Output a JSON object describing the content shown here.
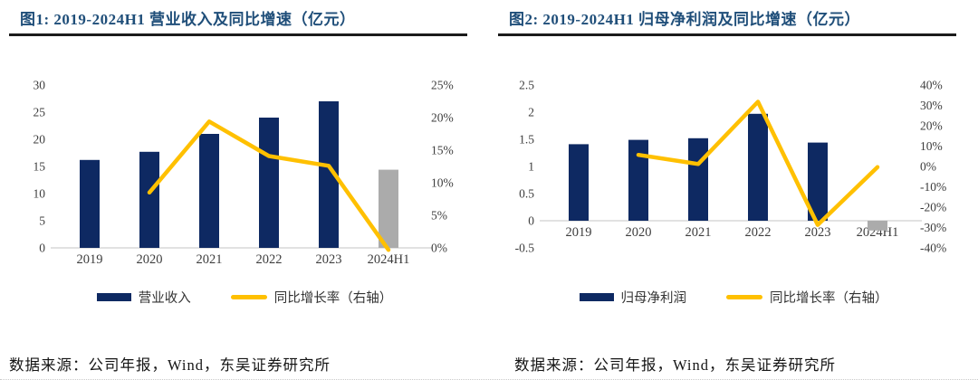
{
  "colors": {
    "bar_navy": "#0E2962",
    "bar_gray": "#ABABAB",
    "line_yellow": "#FFC000",
    "title_navy": "#1F4E79",
    "title_rule": "#1b1b1b",
    "axis_text": "#3d3d3d",
    "axis_line": "#D9D9D9"
  },
  "chart_data": [
    {
      "type": "bar+line",
      "title": "图1: 2019-2024H1 营业收入及同比增速（亿元）",
      "source": "数据来源：公司年报，Wind，东吴证券研究所",
      "categories": [
        "2019",
        "2020",
        "2021",
        "2022",
        "2023",
        "2024H1"
      ],
      "series": [
        {
          "name": "营业收入",
          "type": "bar",
          "axis": "left",
          "values": [
            16.2,
            17.7,
            21.0,
            24.0,
            27.0,
            14.4
          ],
          "bar_colors": [
            "navy",
            "navy",
            "navy",
            "navy",
            "navy",
            "gray"
          ]
        },
        {
          "name": "同比增长率（右轴）",
          "type": "line",
          "axis": "right",
          "values": [
            null,
            8.5,
            19.4,
            14.1,
            12.6,
            -0.3
          ]
        }
      ],
      "left_axis": {
        "min": 0,
        "max": 30,
        "step": 5,
        "ticks": [
          "0",
          "5",
          "10",
          "15",
          "20",
          "25",
          "30"
        ]
      },
      "right_axis": {
        "min": 0,
        "max": 25,
        "step": 5,
        "ticks": [
          "0%",
          "5%",
          "10%",
          "15%",
          "20%",
          "25%"
        ]
      },
      "grid": false,
      "legend_position": "bottom"
    },
    {
      "type": "bar+line",
      "title": "图2: 2019-2024H1 归母净利润及同比增速（亿元）",
      "source": "数据来源：公司年报，Wind，东吴证券研究所",
      "categories": [
        "2019",
        "2020",
        "2021",
        "2022",
        "2023",
        "2024H1"
      ],
      "series": [
        {
          "name": "归母净利润",
          "type": "bar",
          "axis": "left",
          "values": [
            1.41,
            1.49,
            1.52,
            1.97,
            1.44,
            -0.18
          ],
          "bar_colors": [
            "navy",
            "navy",
            "navy",
            "navy",
            "navy",
            "gray"
          ]
        },
        {
          "name": "同比增长率（右轴）",
          "type": "line",
          "axis": "right",
          "values": [
            null,
            5.7,
            1.2,
            31.8,
            -28.7,
            -0.3
          ]
        }
      ],
      "left_axis": {
        "min": -0.5,
        "max": 2.5,
        "step": 0.5,
        "ticks": [
          "-0.5",
          "0",
          "0.5",
          "1",
          "1.5",
          "2",
          "2.5"
        ]
      },
      "right_axis": {
        "min": -40,
        "max": 40,
        "step": 10,
        "ticks": [
          "-40%",
          "-30%",
          "-20%",
          "-10%",
          "0%",
          "10%",
          "20%",
          "30%",
          "40%"
        ]
      },
      "grid": false,
      "legend_position": "bottom"
    }
  ]
}
